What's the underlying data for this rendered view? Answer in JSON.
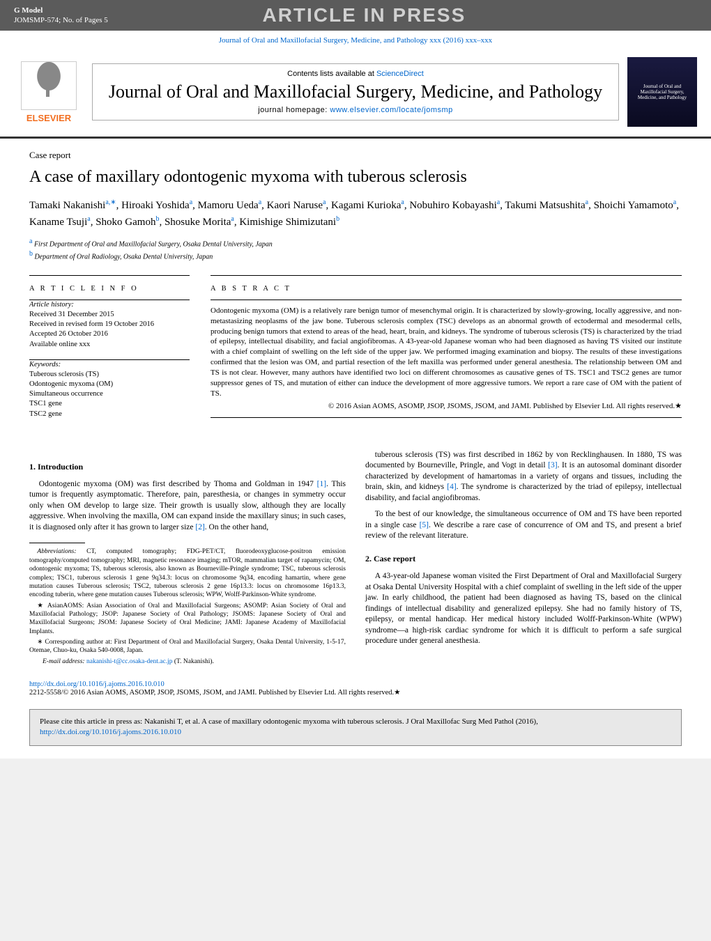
{
  "header": {
    "gmodel": "G Model",
    "jomsmp": "JOMSMP-574;   No. of Pages 5",
    "aip": "ARTICLE IN PRESS",
    "journal_ref": "Journal of Oral and Maxillofacial Surgery, Medicine, and Pathology xxx (2016) xxx–xxx"
  },
  "masthead": {
    "contents_prefix": "Contents lists available at ",
    "contents_link": "ScienceDirect",
    "journal_title": "Journal of Oral and Maxillofacial Surgery, Medicine, and Pathology",
    "homepage_prefix": "journal homepage: ",
    "homepage_link": "www.elsevier.com/locate/jomsmp",
    "elsevier": "ELSEVIER",
    "cover_text": "Journal of Oral and Maxillofacial Surgery, Medicine, and Pathology"
  },
  "article": {
    "type": "Case report",
    "title": "A case of maxillary odontogenic myxoma with tuberous sclerosis",
    "authors_html": "Tamaki Nakanishi<sup class='sup'>a,∗</sup>, Hiroaki Yoshida<sup class='sup'>a</sup>, Mamoru Ueda<sup class='sup'>a</sup>, Kaori Naruse<sup class='sup'>a</sup>, Kagami Kurioka<sup class='sup'>a</sup>, Nobuhiro Kobayashi<sup class='sup'>a</sup>, Takumi Matsushita<sup class='sup'>a</sup>, Shoichi Yamamoto<sup class='sup'>a</sup>, Kaname Tsuji<sup class='sup'>a</sup>, Shoko Gamoh<sup class='sup'>b</sup>, Shosuke Morita<sup class='sup'>a</sup>, Kimishige Shimizutani<sup class='sup'>b</sup>",
    "affiliations": [
      {
        "sup": "a",
        "text": "First Department of Oral and Maxillofacial Surgery, Osaka Dental University, Japan"
      },
      {
        "sup": "b",
        "text": "Department of Oral Radiology, Osaka Dental University, Japan"
      }
    ]
  },
  "info": {
    "head": "a r t i c l e   i n f o",
    "history_head": "Article history:",
    "history": [
      "Received 31 December 2015",
      "Received in revised form 19 October 2016",
      "Accepted 26 October 2016",
      "Available online xxx"
    ],
    "keywords_head": "Keywords:",
    "keywords": [
      "Tuberous sclerosis (TS)",
      "Odontogenic myxoma (OM)",
      "Simultaneous occurrence",
      "TSC1 gene",
      "TSC2 gene"
    ]
  },
  "abstract": {
    "head": "a b s t r a c t",
    "text": "Odontogenic myxoma (OM) is a relatively rare benign tumor of mesenchymal origin. It is characterized by slowly-growing, locally aggressive, and non-metastasizing neoplasms of the jaw bone. Tuberous sclerosis complex (TSC) develops as an abnormal growth of ectodermal and mesodermal cells, producing benign tumors that extend to areas of the head, heart, brain, and kidneys. The syndrome of tuberous sclerosis (TS) is characterized by the triad of epilepsy, intellectual disability, and facial angiofibromas. A 43-year-old Japanese woman who had been diagnosed as having TS visited our institute with a chief complaint of swelling on the left side of the upper jaw. We performed imaging examination and biopsy. The results of these investigations confirmed that the lesion was OM, and partial resection of the left maxilla was performed under general anesthesia. The relationship between OM and TS is not clear. However, many authors have identified two loci on different chromosomes as causative genes of TS. TSC1 and TSC2 genes are tumor suppressor genes of TS, and mutation of either can induce the development of more aggressive tumors. We report a rare case of OM with the patient of TS.",
    "copyright": "© 2016 Asian AOMS, ASOMP, JSOP, JSOMS, JSOM, and JAMI. Published by Elsevier Ltd. All rights reserved.★"
  },
  "body": {
    "intro_head": "1.  Introduction",
    "intro_p1": "Odontogenic myxoma (OM) was first described by Thoma and Goldman in 1947 ",
    "ref1": "[1]",
    "intro_p1b": ". This tumor is frequently asymptomatic. Therefore, pain, paresthesia, or changes in symmetry occur only when OM develop to large size. Their growth is usually slow, although they are locally aggressive. When involving the maxilla, OM can expand inside the maxillary sinus; in such cases, it is diagnosed only after it has grown to larger size ",
    "ref2": "[2]",
    "intro_p1c": ". On the other hand,",
    "intro_p2a": "tuberous sclerosis (TS) was first described in 1862 by von Recklinghausen. In 1880, TS was documented by Bourneville, Pringle, and Vogt in detail ",
    "ref3": "[3]",
    "intro_p2b": ". It is an autosomal dominant disorder characterized by development of hamartomas in a variety of organs and tissues, including the brain, skin, and kidneys ",
    "ref4": "[4]",
    "intro_p2c": ". The syndrome is characterized by the triad of epilepsy, intellectual disability, and facial angiofibromas.",
    "intro_p3a": "To the best of our knowledge, the simultaneous occurrence of OM and TS have been reported in a single case ",
    "ref5": "[5]",
    "intro_p3b": ". We describe a rare case of concurrence of OM and TS, and present a brief review of the relevant literature.",
    "case_head": "2.  Case report",
    "case_p1": "A 43-year-old Japanese woman visited the First Department of Oral and Maxillofacial Surgery at Osaka Dental University Hospital with a chief complaint of swelling in the left side of the upper jaw. In early childhood, the patient had been diagnosed as having TS, based on the clinical findings of intellectual disability and generalized epilepsy. She had no family history of TS, epilepsy, or mental handicap. Her medical history included Wolff-Parkinson-White (WPW) syndrome—a high-risk cardiac syndrome for which it is difficult to perform a safe surgical procedure under general anesthesia."
  },
  "footnotes": {
    "abbrev_head": "Abbreviations:",
    "abbrev_text": " CT, computed tomography; FDG-PET/CT, fluorodeoxyglucose-positron emission tomography/computed tomography; MRI, magnetic resonance imaging; mTOR, mammalian target of rapamycin; OM, odontogenic myxoma; TS, tuberous sclerosis, also known as Bourneville-Pringle syndrome; TSC, tuberous sclerosis complex; TSC1, tuberous sclerosis 1 gene 9q34.3: locus on chromosome 9q34, encoding hamartin, where gene mutation causes Tuberous sclerosis; TSC2, tuberous sclerosis 2 gene 16p13.3: locus on chromosome 16p13.3, encoding tuberin, where gene mutation causes Tuberous sclerosis; WPW, Wolff-Parkinson-White syndrome.",
    "star": "★ AsianAOMS: Asian Association of Oral and Maxillofacial Surgeons; ASOMP: Asian Society of Oral and Maxillofacial Pathology; JSOP: Japanese Society of Oral Pathology; JSOMS: Japanese Society of Oral and Maxillofacial Surgeons; JSOM: Japanese Society of Oral Medicine; JAMI: Japanese Academy of Maxillofacial Implants.",
    "corr": "∗ Corresponding author at: First Department of Oral and Maxillofacial Surgery, Osaka Dental University, 1-5-17, Otemae, Chuo-ku, Osaka 540-0008, Japan.",
    "email_label": "E-mail address: ",
    "email": "nakanishi-t@cc.osaka-dent.ac.jp",
    "email_suffix": " (T. Nakanishi)."
  },
  "footer": {
    "doi": "http://dx.doi.org/10.1016/j.ajoms.2016.10.010",
    "issn": "2212-5558/© 2016 Asian AOMS, ASOMP, JSOP, JSOMS, JSOM, and JAMI. Published by Elsevier Ltd. All rights reserved.★"
  },
  "cite_box": {
    "text": "Please cite this article in press as: Nakanishi T, et al. A case of maxillary odontogenic myxoma with tuberous sclerosis. J Oral Maxillofac Surg Med Pathol (2016), ",
    "link": "http://dx.doi.org/10.1016/j.ajoms.2016.10.010"
  },
  "colors": {
    "header_bg": "#5b5b5b",
    "link": "#0066cc",
    "elsevier_orange": "#f26f21",
    "cite_bg": "#e8e8e8"
  }
}
